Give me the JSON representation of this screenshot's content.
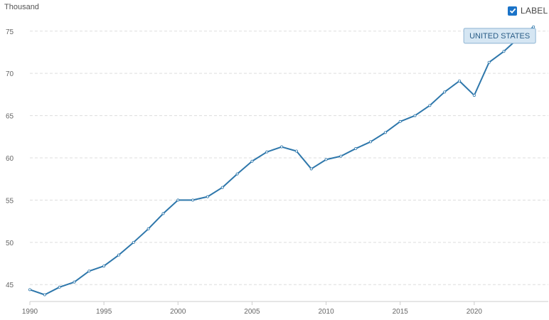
{
  "unit_label": "Thousand",
  "label_toggle": {
    "text": "LABEL",
    "checked": true
  },
  "colors": {
    "line": "#2e77ab",
    "grid": "#dddddd",
    "axis": "#cccccc",
    "tag_fill": "#d5e6f3",
    "tag_border": "#8eb4d3"
  },
  "chart_data": {
    "type": "line",
    "x": [
      1990,
      1991,
      1992,
      1993,
      1994,
      1995,
      1996,
      1997,
      1998,
      1999,
      2000,
      2001,
      2002,
      2003,
      2004,
      2005,
      2006,
      2007,
      2008,
      2009,
      2010,
      2011,
      2012,
      2013,
      2014,
      2015,
      2016,
      2017,
      2018,
      2019,
      2020,
      2021,
      2022,
      2023,
      2024
    ],
    "series": [
      {
        "name": "UNITED STATES",
        "values": [
          44.4,
          43.8,
          44.7,
          45.3,
          46.6,
          47.2,
          48.5,
          50.0,
          51.6,
          53.4,
          55.0,
          55.0,
          55.4,
          56.5,
          58.1,
          59.6,
          60.7,
          61.3,
          60.8,
          58.7,
          59.8,
          60.2,
          61.1,
          61.9,
          63.0,
          64.3,
          65.0,
          66.2,
          67.8,
          69.1,
          67.4,
          71.3,
          72.6,
          74.2,
          75.5
        ]
      }
    ],
    "xticks": [
      1990,
      1995,
      2000,
      2005,
      2010,
      2015,
      2020
    ],
    "yticks": [
      45,
      50,
      55,
      60,
      65,
      70,
      75
    ],
    "ylim": [
      43,
      77
    ],
    "xlim": [
      1990,
      2025
    ],
    "grid": true,
    "xlabel": "",
    "ylabel": "Thousand"
  }
}
